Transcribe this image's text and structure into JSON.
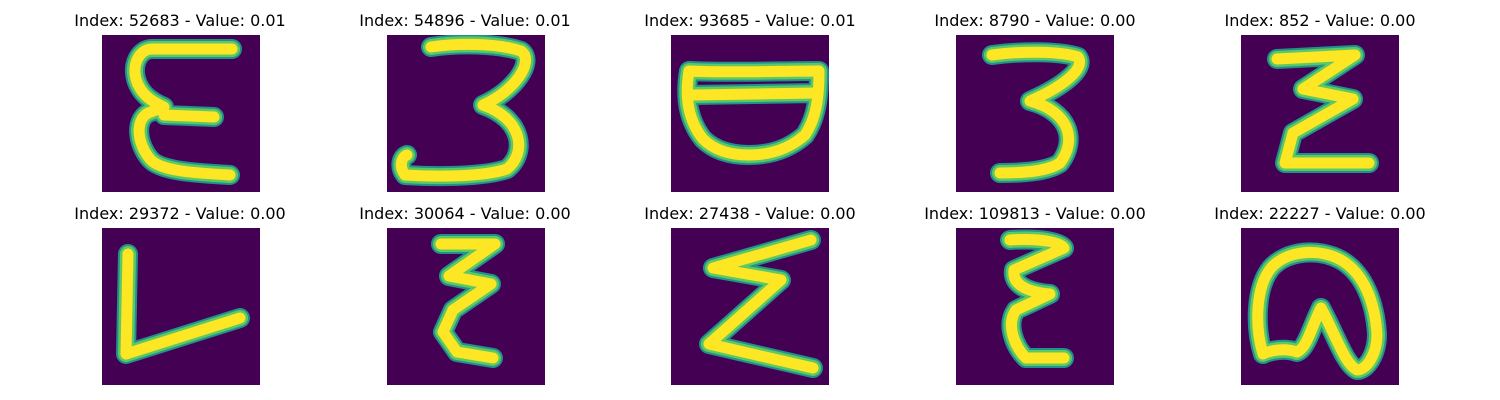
{
  "colors": {
    "background": "#440154",
    "stroke_core": "#fde725",
    "stroke_mid": "#5ec962",
    "stroke_edge": "#21918c"
  },
  "panels": [
    {
      "index": "52683",
      "value": "0.01",
      "title": "Index: 52683 - Value: 0.01",
      "glyph": "epsilon-like character"
    },
    {
      "index": "54896",
      "value": "0.01",
      "title": "Index: 54896 - Value: 0.01",
      "glyph": "digit three-like character"
    },
    {
      "index": "93685",
      "value": "0.01",
      "title": "Index: 93685 - Value: 0.01",
      "glyph": "bowl-shaped character"
    },
    {
      "index": "8790",
      "value": "0.00",
      "title": "Index: 8790 - Value: 0.00",
      "glyph": "digit three-like character"
    },
    {
      "index": "852",
      "value": "0.00",
      "title": "Index: 852 - Value: 0.00",
      "glyph": "zigzag z-like character"
    },
    {
      "index": "29372",
      "value": "0.00",
      "title": "Index: 29372 - Value: 0.00",
      "glyph": "L-shaped character"
    },
    {
      "index": "30064",
      "value": "0.00",
      "title": "Index: 30064 - Value: 0.00",
      "glyph": "zigzag epsilon-like character"
    },
    {
      "index": "27438",
      "value": "0.00",
      "title": "Index: 27438 - Value: 0.00",
      "glyph": "sigma-like character"
    },
    {
      "index": "109813",
      "value": "0.00",
      "title": "Index: 109813 - Value: 0.00",
      "glyph": "epsilon-like character"
    },
    {
      "index": "22227",
      "value": "0.00",
      "title": "Index: 22227 - Value: 0.00",
      "glyph": "arch-shaped character"
    }
  ]
}
